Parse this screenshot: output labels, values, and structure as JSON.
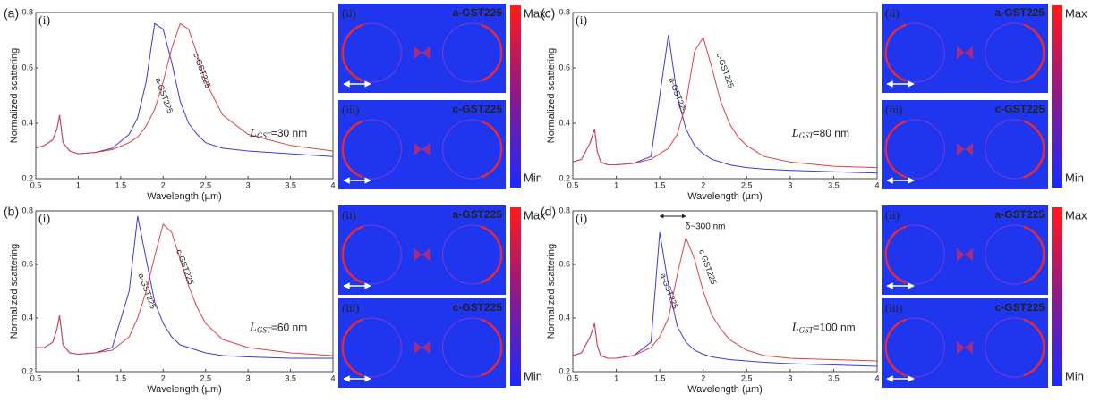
{
  "chart_data": [
    {
      "type": "line",
      "panel": "(a)",
      "subpanel": "(i)",
      "ylabel": "Normalized scattering",
      "xlabel": "Wavelength (µm)",
      "xlim": [
        0.5,
        4
      ],
      "xticks": [
        0.5,
        1,
        1.5,
        2,
        2.5,
        3,
        3.5,
        4
      ],
      "ylim": [
        0.2,
        0.8
      ],
      "yticks": [
        0.2,
        0.4,
        0.6,
        0.8
      ],
      "length_label": {
        "symbol": "L",
        "subscript": "GST",
        "text": "=30 nm"
      },
      "x": [
        0.5,
        0.6,
        0.7,
        0.75,
        0.78,
        0.82,
        0.9,
        1,
        1.2,
        1.4,
        1.6,
        1.7,
        1.8,
        1.9,
        2,
        2.1,
        2.2,
        2.3,
        2.4,
        2.5,
        2.7,
        3,
        3.5,
        4
      ],
      "series": [
        {
          "name": "a-GST225",
          "color": "#3b3bd8",
          "values": [
            0.31,
            0.32,
            0.34,
            0.38,
            0.43,
            0.33,
            0.3,
            0.29,
            0.295,
            0.31,
            0.36,
            0.42,
            0.55,
            0.76,
            0.74,
            0.62,
            0.48,
            0.4,
            0.36,
            0.33,
            0.31,
            0.3,
            0.29,
            0.28
          ]
        },
        {
          "name": "c-GST225",
          "color": "#e0404a",
          "values": [
            0.31,
            0.32,
            0.34,
            0.38,
            0.43,
            0.33,
            0.3,
            0.29,
            0.295,
            0.305,
            0.33,
            0.35,
            0.39,
            0.45,
            0.55,
            0.67,
            0.76,
            0.74,
            0.65,
            0.55,
            0.43,
            0.36,
            0.32,
            0.3
          ]
        }
      ],
      "maps": [
        {
          "label": "(ii)",
          "title": "a-GST225"
        },
        {
          "label": "(iii)",
          "title": "c-GST225"
        }
      ],
      "colorbar": {
        "max": "Max",
        "min": "Min"
      }
    },
    {
      "type": "line",
      "panel": "(b)",
      "subpanel": "(i)",
      "ylabel": "Normalized scattering",
      "xlabel": "Wavelength (µm)",
      "xlim": [
        0.5,
        4
      ],
      "xticks": [
        0.5,
        1,
        1.5,
        2,
        2.5,
        3,
        3.5,
        4
      ],
      "ylim": [
        0.2,
        0.8
      ],
      "yticks": [
        0.2,
        0.4,
        0.6,
        0.8
      ],
      "length_label": {
        "symbol": "L",
        "subscript": "GST",
        "text": "=60 nm"
      },
      "x": [
        0.5,
        0.6,
        0.7,
        0.75,
        0.78,
        0.82,
        0.9,
        1,
        1.2,
        1.4,
        1.6,
        1.7,
        1.8,
        1.9,
        2,
        2.1,
        2.2,
        2.3,
        2.4,
        2.5,
        2.7,
        3,
        3.5,
        4
      ],
      "series": [
        {
          "name": "a-GST225",
          "color": "#3b3bd8",
          "values": [
            0.29,
            0.29,
            0.31,
            0.36,
            0.41,
            0.3,
            0.27,
            0.265,
            0.27,
            0.29,
            0.5,
            0.78,
            0.62,
            0.46,
            0.38,
            0.33,
            0.3,
            0.29,
            0.28,
            0.27,
            0.26,
            0.255,
            0.25,
            0.25
          ]
        },
        {
          "name": "c-GST225",
          "color": "#e0404a",
          "values": [
            0.29,
            0.29,
            0.31,
            0.36,
            0.41,
            0.3,
            0.27,
            0.265,
            0.27,
            0.28,
            0.33,
            0.4,
            0.5,
            0.63,
            0.75,
            0.72,
            0.62,
            0.52,
            0.44,
            0.38,
            0.32,
            0.29,
            0.27,
            0.26
          ]
        }
      ],
      "maps": [
        {
          "label": "(ii)",
          "title": "a-GST225"
        },
        {
          "label": "(iii)",
          "title": "c-GST225"
        }
      ],
      "colorbar": {
        "max": "Max",
        "min": "Min"
      }
    },
    {
      "type": "line",
      "panel": "(c)",
      "subpanel": "(i)",
      "ylabel": "Normalized scattering",
      "xlabel": "Wavelength (µm)",
      "xlim": [
        0.5,
        4
      ],
      "xticks": [
        0.5,
        1,
        1.5,
        2,
        2.5,
        3,
        3.5,
        4
      ],
      "ylim": [
        0.2,
        0.8
      ],
      "yticks": [
        0.2,
        0.4,
        0.6,
        0.8
      ],
      "length_label": {
        "symbol": "L",
        "subscript": "GST",
        "text": "=80 nm"
      },
      "x": [
        0.5,
        0.6,
        0.7,
        0.75,
        0.78,
        0.82,
        0.9,
        1,
        1.2,
        1.4,
        1.6,
        1.7,
        1.8,
        1.9,
        2,
        2.1,
        2.2,
        2.3,
        2.4,
        2.5,
        2.7,
        3,
        3.5,
        4
      ],
      "series": [
        {
          "name": "a-GST225",
          "color": "#3b3bd8",
          "values": [
            0.26,
            0.27,
            0.33,
            0.38,
            0.3,
            0.26,
            0.25,
            0.25,
            0.255,
            0.28,
            0.72,
            0.5,
            0.38,
            0.32,
            0.29,
            0.27,
            0.26,
            0.25,
            0.245,
            0.24,
            0.235,
            0.23,
            0.225,
            0.22
          ]
        },
        {
          "name": "c-GST225",
          "color": "#e0404a",
          "values": [
            0.26,
            0.27,
            0.33,
            0.38,
            0.3,
            0.26,
            0.25,
            0.25,
            0.255,
            0.27,
            0.31,
            0.36,
            0.47,
            0.66,
            0.71,
            0.6,
            0.48,
            0.4,
            0.35,
            0.32,
            0.28,
            0.26,
            0.245,
            0.24
          ]
        }
      ],
      "maps": [
        {
          "label": "(ii)",
          "title": "a-GST225"
        },
        {
          "label": "(iii)",
          "title": "c-GST225"
        }
      ],
      "colorbar": {
        "max": "Max",
        "min": "Min"
      }
    },
    {
      "type": "line",
      "panel": "(d)",
      "subpanel": "(i)",
      "ylabel": "Normalized scattering",
      "xlabel": "Wavelength (µm)",
      "xlim": [
        0.5,
        4
      ],
      "xticks": [
        0.5,
        1,
        1.5,
        2,
        2.5,
        3,
        3.5,
        4
      ],
      "ylim": [
        0.2,
        0.8
      ],
      "yticks": [
        0.2,
        0.4,
        0.6,
        0.8
      ],
      "length_label": {
        "symbol": "L",
        "subscript": "GST",
        "text": "=100 nm"
      },
      "annotation": "δ~300 nm",
      "x": [
        0.5,
        0.6,
        0.7,
        0.75,
        0.78,
        0.82,
        0.9,
        1,
        1.2,
        1.4,
        1.5,
        1.6,
        1.7,
        1.8,
        1.9,
        2,
        2.1,
        2.2,
        2.3,
        2.5,
        2.7,
        3,
        3.5,
        4
      ],
      "series": [
        {
          "name": "a-GST225",
          "color": "#3b3bd8",
          "values": [
            0.26,
            0.27,
            0.33,
            0.38,
            0.3,
            0.26,
            0.25,
            0.25,
            0.26,
            0.31,
            0.72,
            0.52,
            0.37,
            0.31,
            0.28,
            0.265,
            0.255,
            0.25,
            0.245,
            0.24,
            0.235,
            0.23,
            0.225,
            0.22
          ]
        },
        {
          "name": "c-GST225",
          "color": "#e0404a",
          "values": [
            0.26,
            0.27,
            0.33,
            0.38,
            0.3,
            0.26,
            0.25,
            0.25,
            0.26,
            0.29,
            0.33,
            0.4,
            0.56,
            0.7,
            0.62,
            0.5,
            0.41,
            0.36,
            0.32,
            0.28,
            0.26,
            0.25,
            0.245,
            0.24
          ]
        }
      ],
      "maps": [
        {
          "label": "(ii)",
          "title": "a-GST225"
        },
        {
          "label": "(iii)",
          "title": "c-GST225"
        }
      ],
      "colorbar": {
        "max": "Max",
        "min": "Min"
      }
    }
  ]
}
